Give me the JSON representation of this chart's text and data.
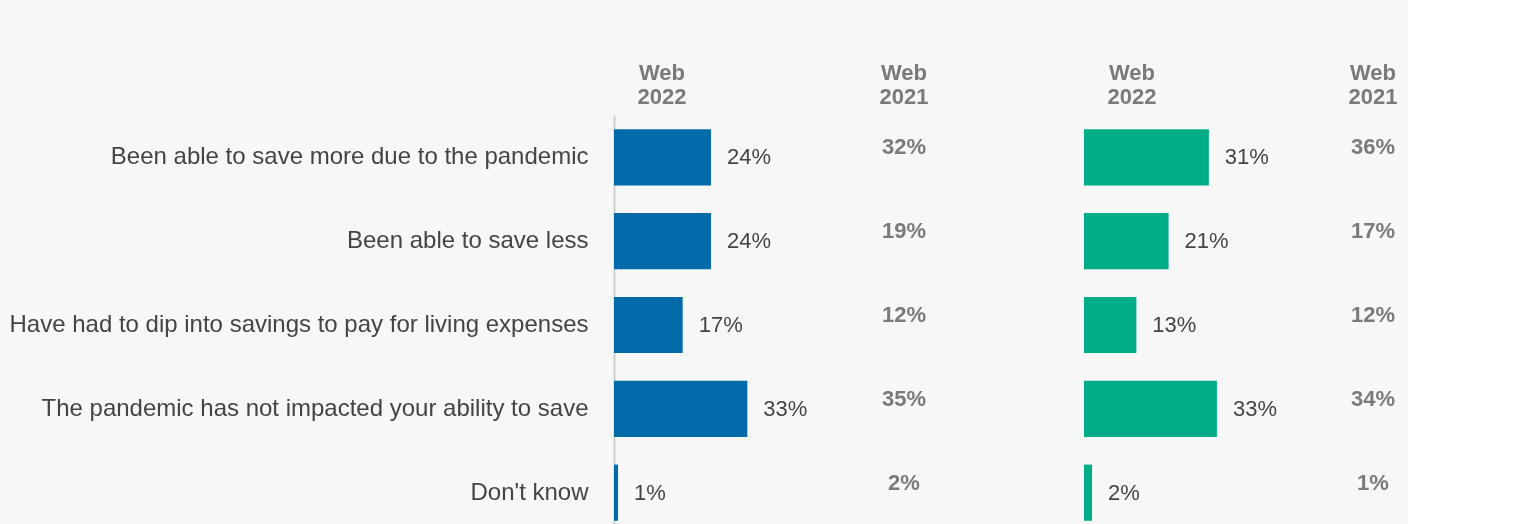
{
  "chart_data": [
    {
      "type": "bar",
      "orientation": "horizontal",
      "title": "Web 2022",
      "categories": [
        "Been able to save more due to the pandemic",
        "Been able to save less",
        "Have had to dip into savings to pay for living expenses",
        "The pandemic has not impacted your ability to save",
        "Don't know"
      ],
      "values": [
        24,
        24,
        17,
        33,
        1
      ],
      "value_labels": [
        "24%",
        "24%",
        "17%",
        "33%",
        "1%"
      ],
      "color": "#006ba8",
      "tick_labels": "y",
      "annotations": [
        "Web 2021",
        "32%",
        "19%",
        "12%",
        "35%",
        "2%"
      ]
    },
    {
      "type": "bar",
      "orientation": "horizontal",
      "title": "Web 2022",
      "values": [
        31,
        21,
        13,
        33,
        2
      ],
      "value_labels": [
        "31%",
        "21%",
        "13%",
        "33%",
        "2%"
      ],
      "color": "#00ad86",
      "tick_labels": false,
      "annotations": [
        "Web 2021",
        "36%",
        "17%",
        "12%",
        "34%",
        "1%"
      ]
    }
  ]
}
